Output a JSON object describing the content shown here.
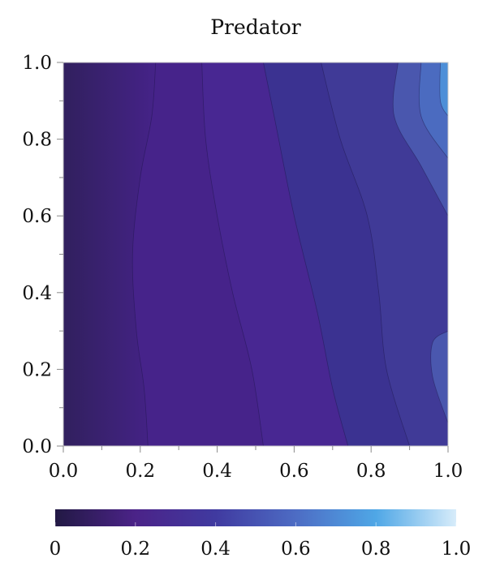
{
  "chart_data": {
    "type": "contour",
    "title": "Predator",
    "xlabel": "",
    "ylabel": "",
    "xlim": [
      0.0,
      1.0
    ],
    "ylim": [
      0.0,
      1.0
    ],
    "x_ticks": [
      "0.0",
      "0.2",
      "0.4",
      "0.6",
      "0.8",
      "1.0"
    ],
    "y_ticks": [
      "0.0",
      "0.2",
      "0.4",
      "0.6",
      "0.8",
      "1.0"
    ],
    "grid": false,
    "colorbar": {
      "orientation": "horizontal",
      "placement": "bottom",
      "range": [
        0,
        1.0
      ],
      "tick_labels": [
        "0",
        "0.2",
        "0.4",
        "0.6",
        "0.8",
        "1.0"
      ],
      "colors": [
        "#221944",
        "#4b2388",
        "#403aa0",
        "#4d6cc4",
        "#4fa7e6",
        "#d7ecfa"
      ]
    },
    "contour_levels": [
      0.1,
      0.2,
      0.3,
      0.4,
      0.5,
      0.6,
      0.7,
      0.8,
      0.9
    ],
    "level_colors": [
      "#34215f",
      "#46238a",
      "#482792",
      "#3b3291",
      "#403a97",
      "#4a57ae",
      "#4b6bc0",
      "#4d8fd8",
      "#5aaee8",
      "#8bc9ef"
    ],
    "contour_lines": [
      {
        "level": 0.1,
        "points": [
          [
            0.22,
            0.0
          ],
          [
            0.21,
            0.15
          ],
          [
            0.19,
            0.3
          ],
          [
            0.18,
            0.5
          ],
          [
            0.2,
            0.7
          ],
          [
            0.23,
            0.86
          ],
          [
            0.24,
            1.0
          ]
        ]
      },
      {
        "level": 0.2,
        "points": [
          [
            0.52,
            0.0
          ],
          [
            0.49,
            0.2
          ],
          [
            0.44,
            0.4
          ],
          [
            0.4,
            0.6
          ],
          [
            0.37,
            0.8
          ],
          [
            0.36,
            1.0
          ]
        ]
      },
      {
        "level": 0.3,
        "points": [
          [
            0.74,
            0.0
          ],
          [
            0.7,
            0.15
          ],
          [
            0.66,
            0.35
          ],
          [
            0.6,
            0.6
          ],
          [
            0.55,
            0.85
          ],
          [
            0.52,
            1.0
          ]
        ]
      },
      {
        "level": 0.4,
        "points": [
          [
            0.9,
            0.0
          ],
          [
            0.84,
            0.2
          ],
          [
            0.82,
            0.4
          ],
          [
            0.79,
            0.6
          ],
          [
            0.72,
            0.8
          ],
          [
            0.67,
            1.0
          ]
        ]
      },
      {
        "level": 0.5,
        "points": [
          [
            1.0,
            0.06
          ],
          [
            0.96,
            0.18
          ],
          [
            0.96,
            0.27
          ],
          [
            1.0,
            0.3
          ]
        ]
      },
      {
        "level": 0.5,
        "points": [
          [
            0.87,
            1.0
          ],
          [
            0.86,
            0.86
          ],
          [
            0.93,
            0.73
          ],
          [
            1.0,
            0.6
          ]
        ]
      },
      {
        "level": 0.6,
        "points": [
          [
            0.93,
            1.0
          ],
          [
            0.93,
            0.86
          ],
          [
            1.0,
            0.75
          ]
        ]
      },
      {
        "level": 0.7,
        "points": [
          [
            0.98,
            1.0
          ],
          [
            0.98,
            0.9
          ],
          [
            1.0,
            0.86
          ]
        ]
      }
    ]
  }
}
